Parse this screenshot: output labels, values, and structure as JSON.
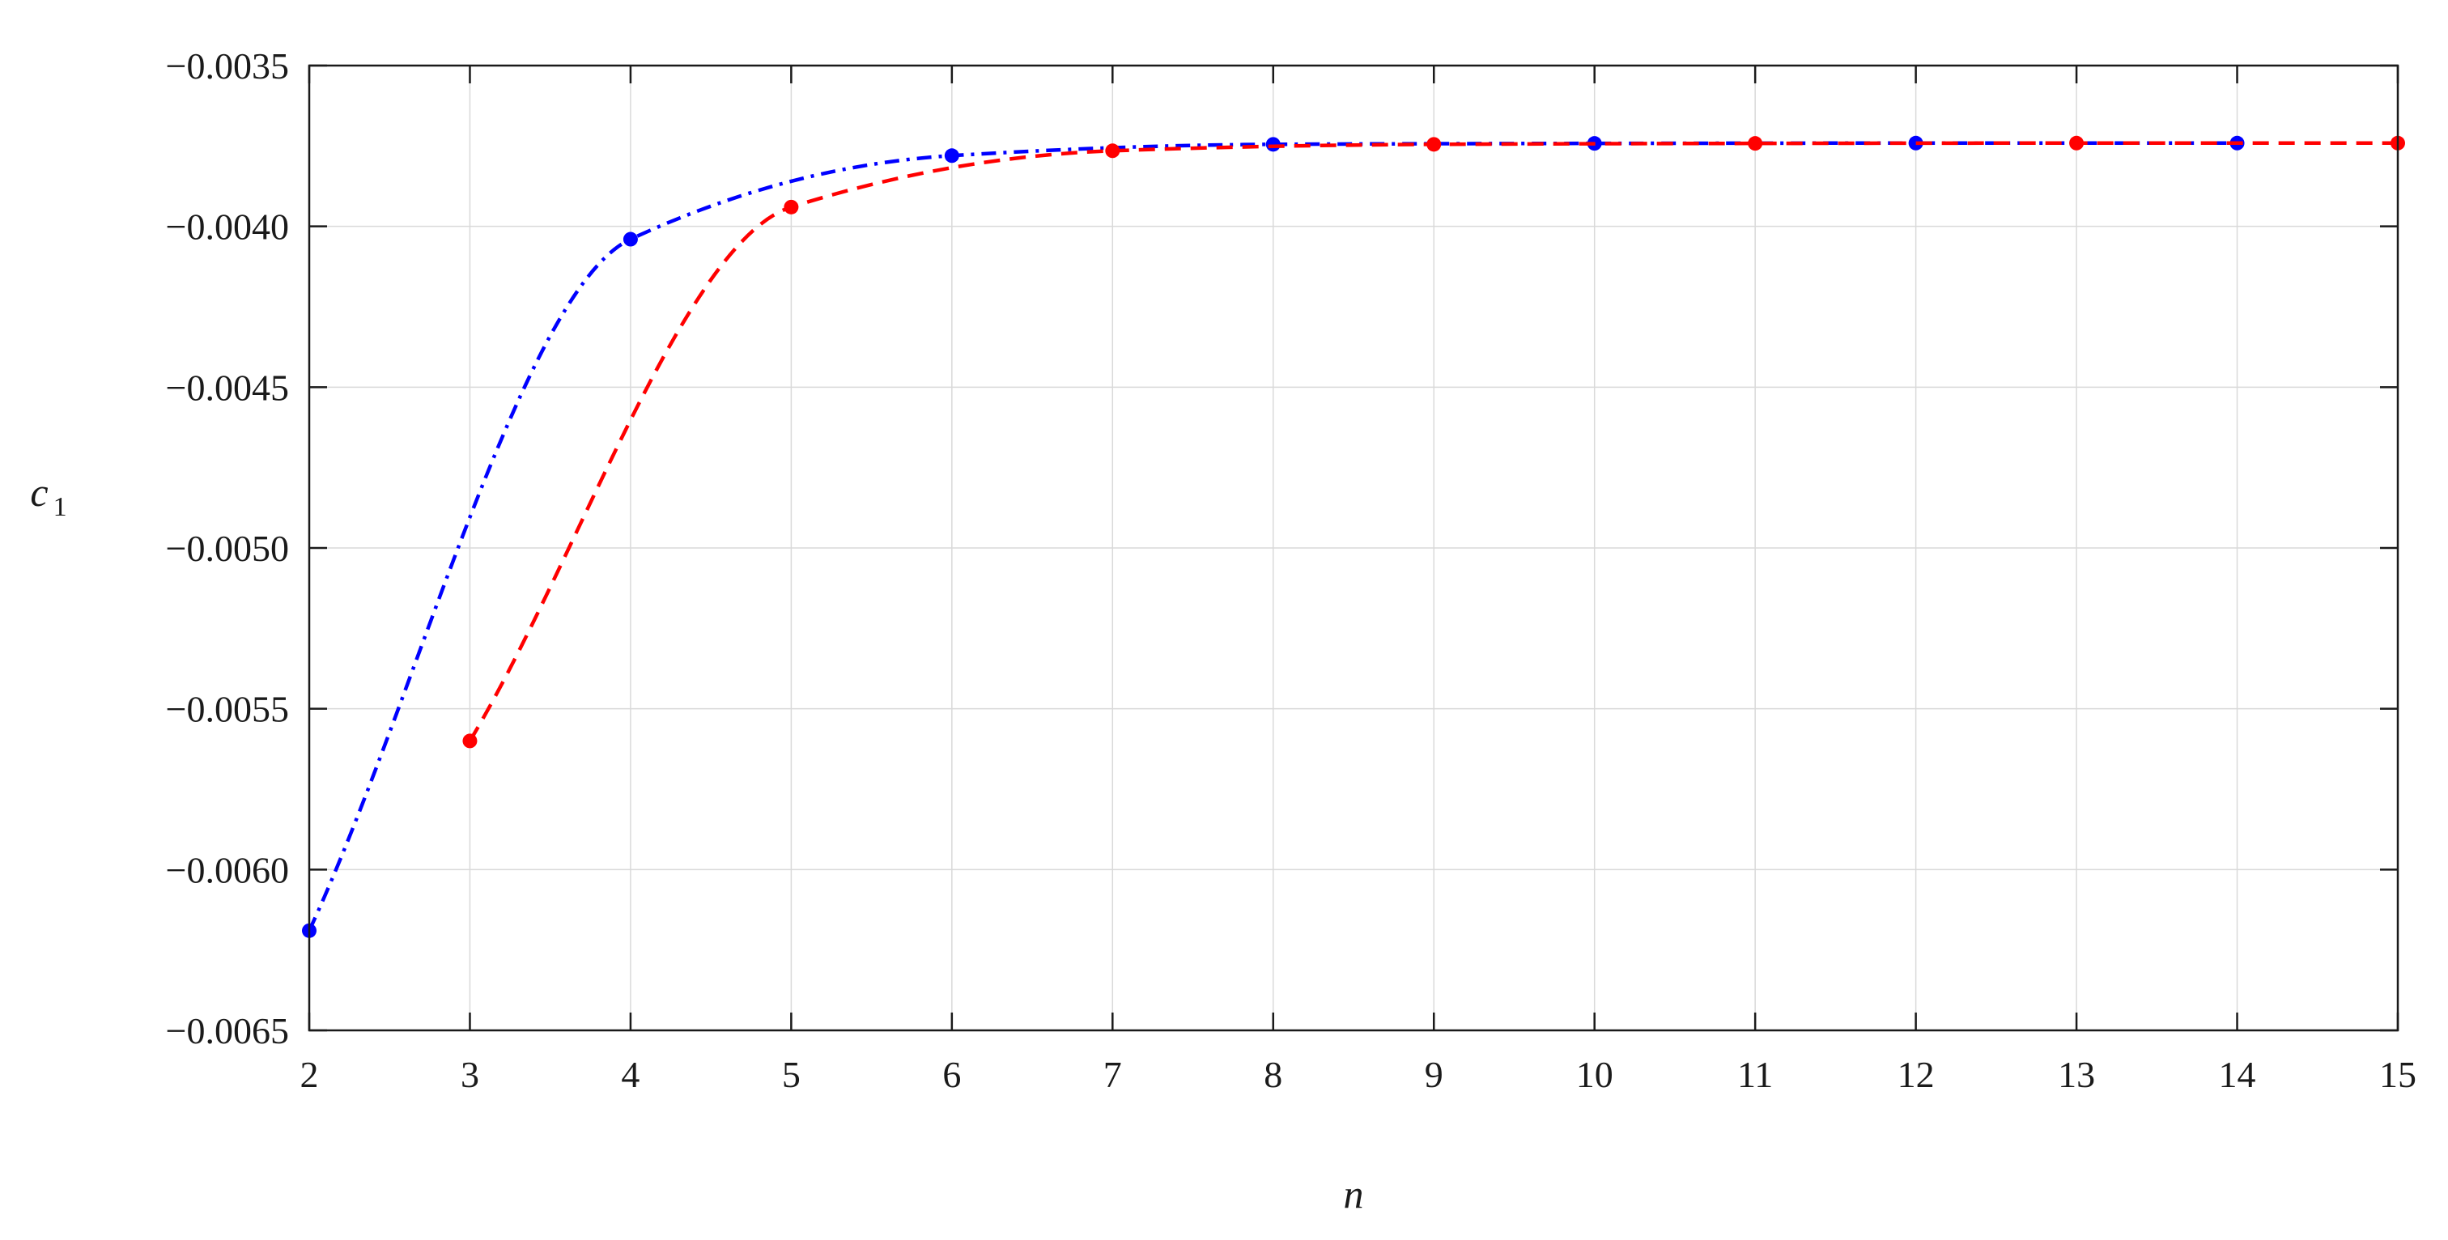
{
  "chart_data": {
    "type": "line",
    "title": "",
    "xlabel": "n",
    "ylabel": "c",
    "ylabel_subscript": "1",
    "xlim": [
      2,
      15
    ],
    "ylim": [
      -0.0065,
      -0.0035
    ],
    "xticks": [
      2,
      3,
      4,
      5,
      6,
      7,
      8,
      9,
      10,
      11,
      12,
      13,
      14,
      15
    ],
    "xtick_labels": [
      "2",
      "3",
      "4",
      "5",
      "6",
      "7",
      "8",
      "9",
      "10",
      "11",
      "12",
      "13",
      "14",
      "15"
    ],
    "yticks": [
      -0.0065,
      -0.006,
      -0.0055,
      -0.005,
      -0.0045,
      -0.004,
      -0.0035
    ],
    "ytick_labels": [
      "−0.0065",
      "−0.0060",
      "−0.0055",
      "−0.0050",
      "−0.0045",
      "−0.0040",
      "−0.0035"
    ],
    "grid": true,
    "legend": "none",
    "series": [
      {
        "color": "#0000ff",
        "line_style": "dash-dot",
        "marker": "circle",
        "x": [
          2,
          4,
          6,
          8,
          10,
          12,
          14
        ],
        "y": [
          -0.00619,
          -0.00404,
          -0.00378,
          -0.003745,
          -0.003742,
          -0.003741,
          -0.003741
        ]
      },
      {
        "color": "#ff0000",
        "line_style": "dashed",
        "marker": "circle",
        "x": [
          3,
          5,
          7,
          9,
          11,
          13,
          15
        ],
        "y": [
          -0.0056,
          -0.00394,
          -0.003765,
          -0.003745,
          -0.003742,
          -0.003741,
          -0.003741
        ]
      }
    ]
  }
}
